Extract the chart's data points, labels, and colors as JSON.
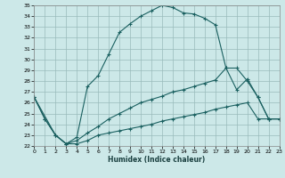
{
  "xlabel": "Humidex (Indice chaleur)",
  "xlim": [
    0,
    23
  ],
  "ylim": [
    22,
    35
  ],
  "xticks": [
    0,
    1,
    2,
    3,
    4,
    5,
    6,
    7,
    8,
    9,
    10,
    11,
    12,
    13,
    14,
    15,
    16,
    17,
    18,
    19,
    20,
    21,
    22,
    23
  ],
  "yticks": [
    22,
    23,
    24,
    25,
    26,
    27,
    28,
    29,
    30,
    31,
    32,
    33,
    34,
    35
  ],
  "bg_color": "#cce8e8",
  "grid_color": "#99bbbb",
  "line_color": "#1a6060",
  "line1_x": [
    0,
    1,
    2,
    3,
    4,
    5,
    6,
    7,
    8,
    9,
    10,
    11,
    12,
    13,
    14,
    15,
    16,
    17,
    18,
    19,
    20,
    21,
    22,
    23
  ],
  "line1_y": [
    26.5,
    24.5,
    23.0,
    22.2,
    22.8,
    27.5,
    28.5,
    30.5,
    32.5,
    33.3,
    34.0,
    34.5,
    35.0,
    34.8,
    34.3,
    34.2,
    33.8,
    33.2,
    29.2,
    27.2,
    28.2,
    26.5,
    24.5,
    24.5
  ],
  "line2_x": [
    0,
    2,
    3,
    4,
    5,
    6,
    7,
    8,
    9,
    10,
    11,
    12,
    13,
    14,
    15,
    16,
    17,
    18,
    19,
    20,
    21,
    22,
    23
  ],
  "line2_y": [
    26.5,
    23.0,
    22.2,
    22.5,
    23.2,
    23.8,
    24.5,
    25.0,
    25.5,
    26.0,
    26.3,
    26.6,
    27.0,
    27.2,
    27.5,
    27.8,
    28.1,
    29.2,
    29.2,
    28.0,
    26.5,
    24.5,
    24.5
  ],
  "line3_x": [
    0,
    1,
    2,
    3,
    4,
    5,
    6,
    7,
    8,
    9,
    10,
    11,
    12,
    13,
    14,
    15,
    16,
    17,
    18,
    19,
    20,
    21,
    22,
    23
  ],
  "line3_y": [
    26.5,
    24.5,
    23.0,
    22.2,
    22.2,
    22.5,
    23.0,
    23.2,
    23.4,
    23.6,
    23.8,
    24.0,
    24.3,
    24.5,
    24.7,
    24.9,
    25.1,
    25.4,
    25.6,
    25.8,
    26.0,
    24.5,
    24.5,
    24.5
  ],
  "marker": "+",
  "markersize": 3.5
}
